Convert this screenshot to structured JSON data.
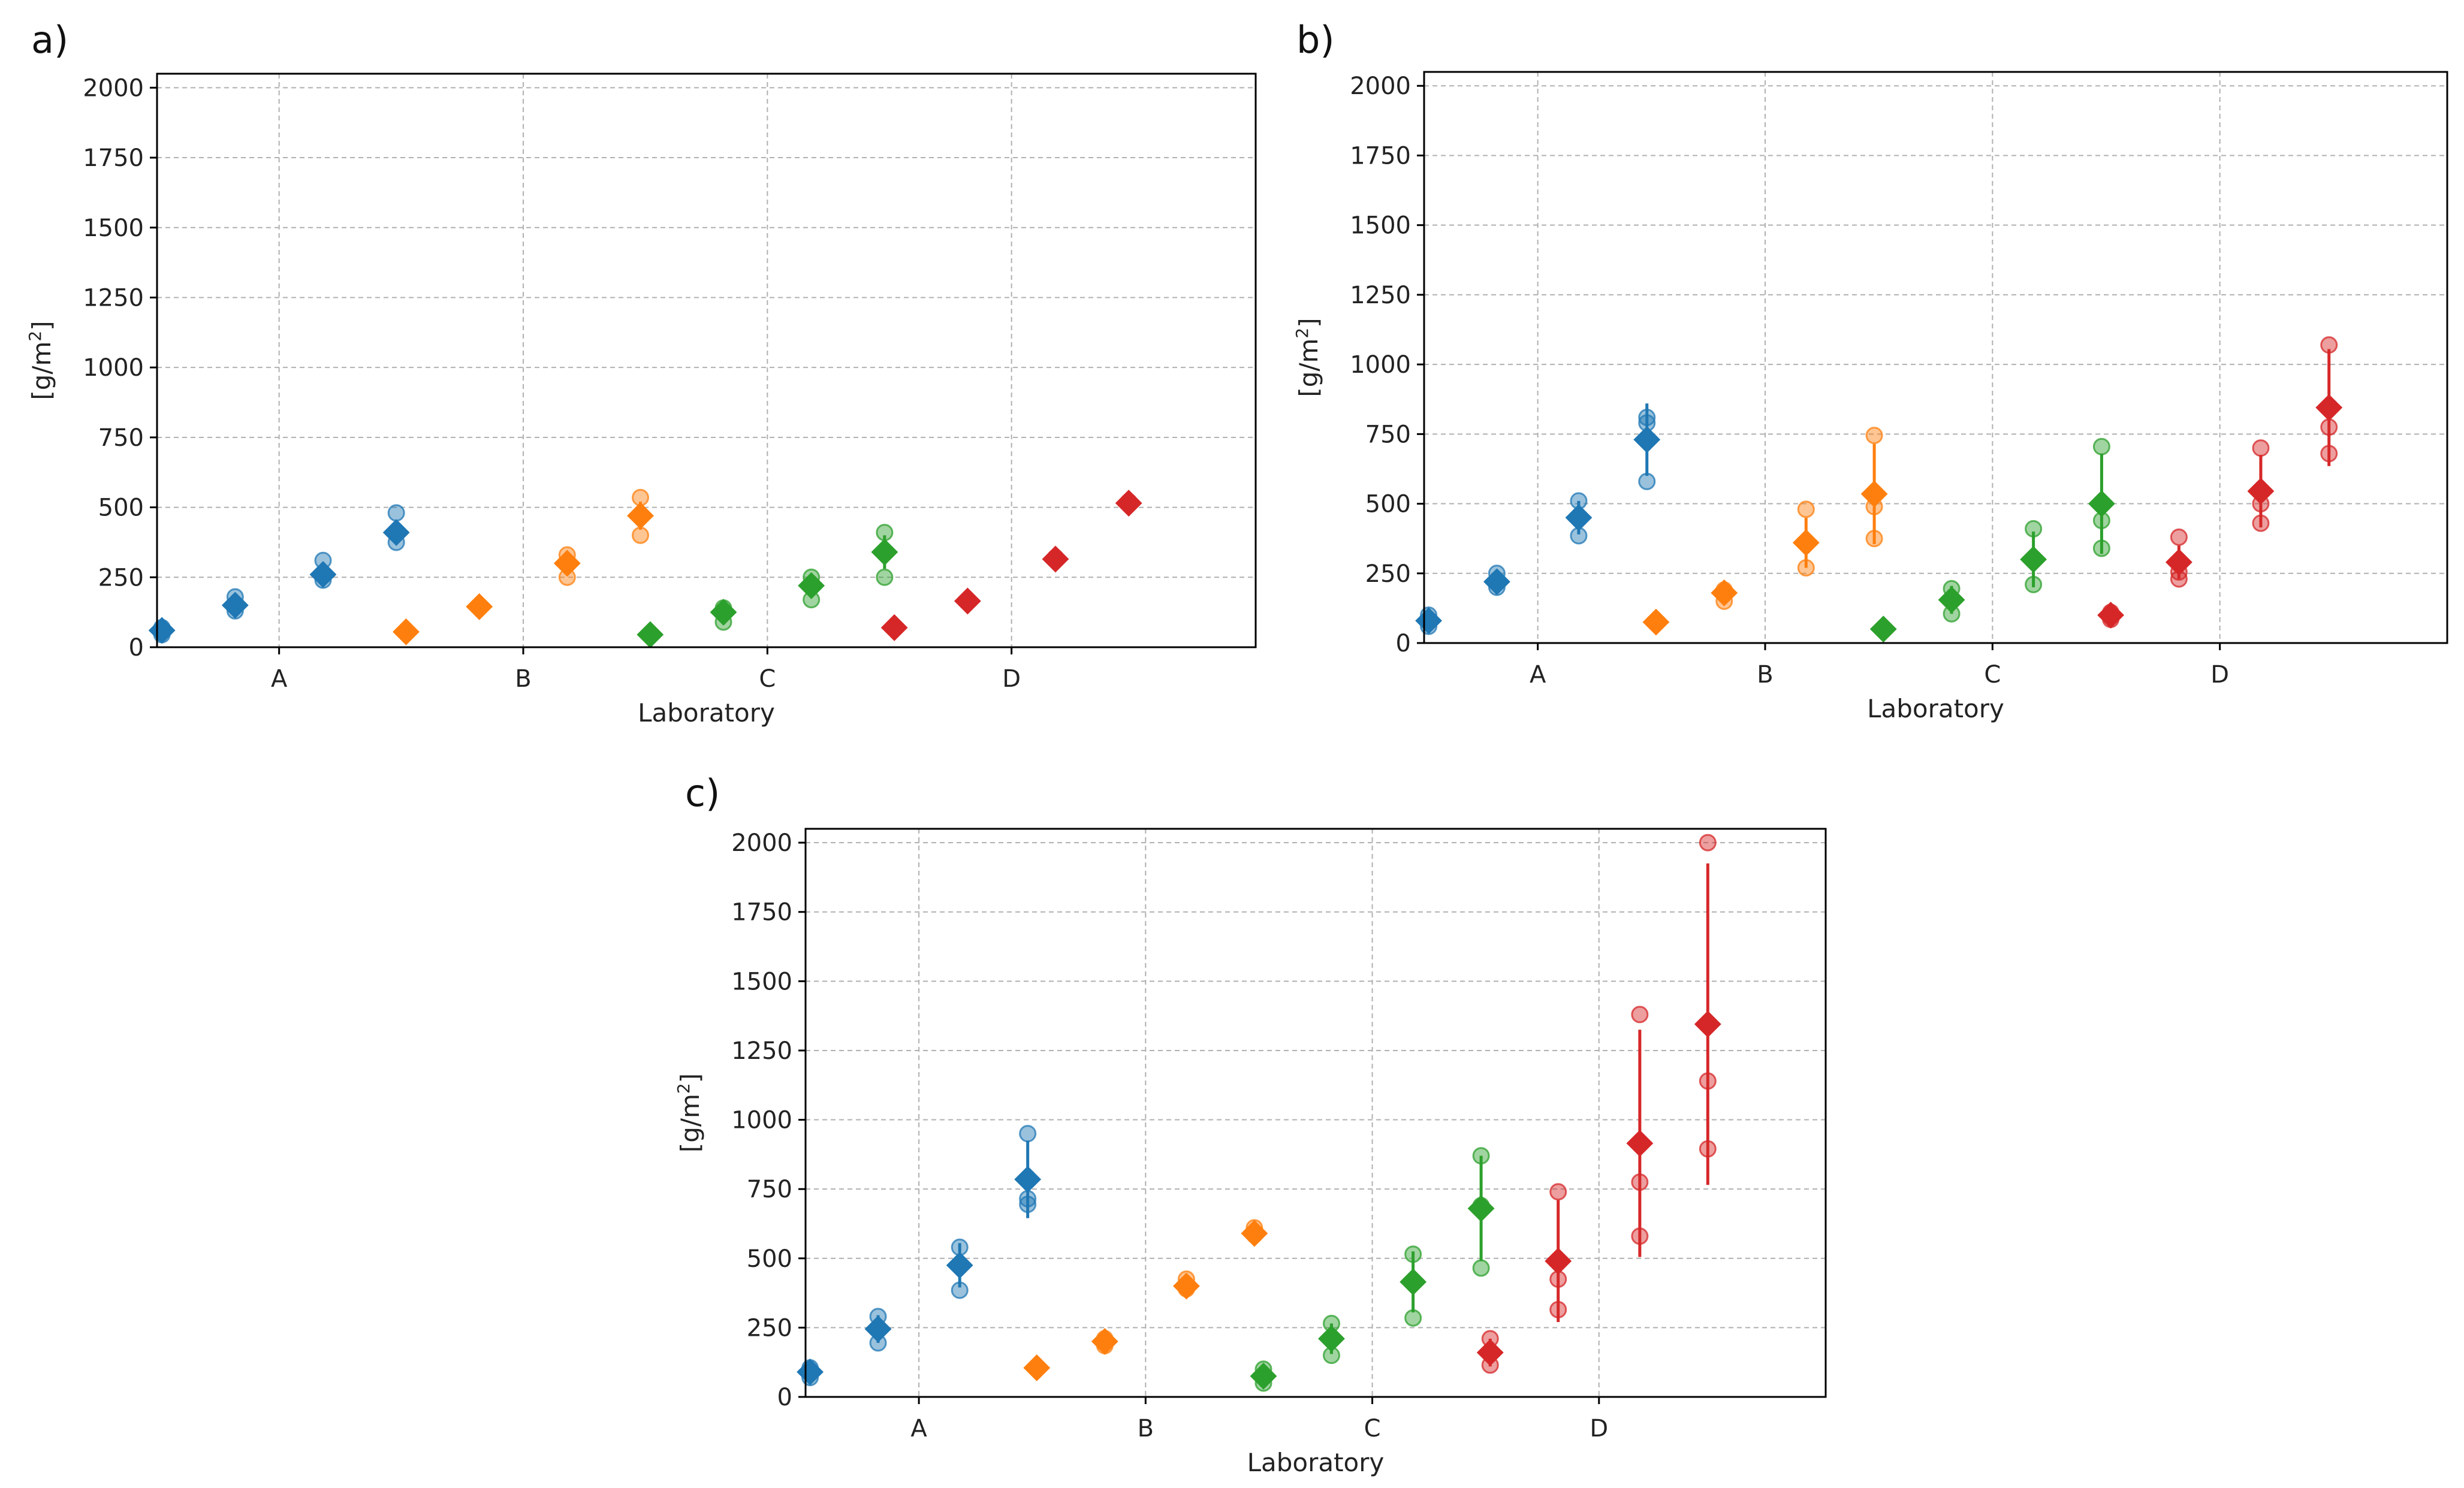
{
  "chart_data": [
    {
      "type": "scatter",
      "panel_label": "a)",
      "title": "",
      "xlabel": "Laboratory",
      "ylabel": "[g/m²]",
      "ylabel_base": "[g/m",
      "ylabel_sup": "2",
      "ylabel_close": "]",
      "categories": [
        "A",
        "B",
        "C",
        "D"
      ],
      "ylim": [
        0,
        2050
      ],
      "yticks": [
        0,
        250,
        500,
        750,
        1000,
        1250,
        1500,
        1750,
        2000
      ],
      "grid": true,
      "series": [
        {
          "name": "A",
          "color": "#1f77b4",
          "groups": [
            {
              "mean": 60,
              "err": 15,
              "points": [
                45,
                70
              ]
            },
            {
              "mean": 150,
              "err": 25,
              "points": [
                130,
                180
              ]
            },
            {
              "mean": 260,
              "err": 30,
              "points": [
                240,
                310
              ]
            },
            {
              "mean": 410,
              "err": 40,
              "points": [
                375,
                480
              ]
            }
          ]
        },
        {
          "name": "B",
          "color": "#ff7f0e",
          "groups": [
            {
              "mean": 55,
              "err": 5,
              "points": [
                55
              ]
            },
            {
              "mean": 145,
              "err": 8,
              "points": [
                145
              ]
            },
            {
              "mean": 300,
              "err": 40,
              "points": [
                250,
                330
              ]
            },
            {
              "mean": 470,
              "err": 50,
              "points": [
                400,
                535
              ]
            }
          ]
        },
        {
          "name": "C",
          "color": "#2ca02c",
          "groups": [
            {
              "mean": 45,
              "err": 5,
              "points": [
                45
              ]
            },
            {
              "mean": 125,
              "err": 30,
              "points": [
                90,
                140
              ]
            },
            {
              "mean": 220,
              "err": 35,
              "points": [
                170,
                250
              ]
            },
            {
              "mean": 340,
              "err": 60,
              "points": [
                250,
                410
              ]
            }
          ]
        },
        {
          "name": "D",
          "color": "#d62728",
          "groups": [
            {
              "mean": 70,
              "err": 5,
              "points": [
                70
              ]
            },
            {
              "mean": 165,
              "err": 10,
              "points": [
                165
              ]
            },
            {
              "mean": 315,
              "err": 15,
              "points": [
                320
              ]
            },
            {
              "mean": 515,
              "err": 15,
              "points": [
                520
              ]
            }
          ]
        }
      ]
    },
    {
      "type": "scatter",
      "panel_label": "b)",
      "title": "",
      "xlabel": "Laboratory",
      "ylabel": "[g/m²]",
      "ylabel_base": "[g/m",
      "ylabel_sup": "2",
      "ylabel_close": "]",
      "categories": [
        "A",
        "B",
        "C",
        "D"
      ],
      "ylim": [
        0,
        2050
      ],
      "yticks": [
        0,
        250,
        500,
        750,
        1000,
        1250,
        1500,
        1750,
        2000
      ],
      "grid": true,
      "series": [
        {
          "name": "A",
          "color": "#1f77b4",
          "groups": [
            {
              "mean": 80,
              "err": 20,
              "points": [
                60,
                100
              ]
            },
            {
              "mean": 220,
              "err": 25,
              "points": [
                200,
                250
              ]
            },
            {
              "mean": 450,
              "err": 60,
              "points": [
                385,
                510
              ]
            },
            {
              "mean": 730,
              "err": 130,
              "points": [
                580,
                790,
                810
              ]
            }
          ]
        },
        {
          "name": "B",
          "color": "#ff7f0e",
          "groups": [
            {
              "mean": 75,
              "err": 5,
              "points": [
                75
              ]
            },
            {
              "mean": 180,
              "err": 25,
              "points": [
                150,
                190
              ]
            },
            {
              "mean": 360,
              "err": 90,
              "points": [
                270,
                480
              ]
            },
            {
              "mean": 535,
              "err": 180,
              "points": [
                375,
                490,
                745
              ]
            }
          ]
        },
        {
          "name": "C",
          "color": "#2ca02c",
          "groups": [
            {
              "mean": 50,
              "err": 5,
              "points": [
                50
              ]
            },
            {
              "mean": 155,
              "err": 50,
              "points": [
                105,
                195
              ]
            },
            {
              "mean": 300,
              "err": 100,
              "points": [
                210,
                410
              ]
            },
            {
              "mean": 500,
              "err": 180,
              "points": [
                340,
                440,
                705
              ]
            }
          ]
        },
        {
          "name": "D",
          "color": "#d62728",
          "groups": [
            {
              "mean": 100,
              "err": 15,
              "points": [
                85,
                110
              ]
            },
            {
              "mean": 290,
              "err": 60,
              "points": [
                230,
                255,
                380
              ]
            },
            {
              "mean": 545,
              "err": 130,
              "points": [
                430,
                500,
                700
              ]
            },
            {
              "mean": 845,
              "err": 210,
              "points": [
                680,
                775,
                1070
              ]
            }
          ]
        }
      ]
    },
    {
      "type": "scatter",
      "panel_label": "c)",
      "title": "",
      "xlabel": "Laboratory",
      "ylabel": "[g/m²]",
      "ylabel_base": "[g/m",
      "ylabel_sup": "2",
      "ylabel_close": "]",
      "categories": [
        "A",
        "B",
        "C",
        "D"
      ],
      "ylim": [
        0,
        2050
      ],
      "yticks": [
        0,
        250,
        500,
        750,
        1000,
        1250,
        1500,
        1750,
        2000
      ],
      "grid": true,
      "series": [
        {
          "name": "A",
          "color": "#1f77b4",
          "groups": [
            {
              "mean": 90,
              "err": 20,
              "points": [
                70,
                105
              ]
            },
            {
              "mean": 245,
              "err": 50,
              "points": [
                195,
                290
              ]
            },
            {
              "mean": 475,
              "err": 80,
              "points": [
                385,
                540
              ]
            },
            {
              "mean": 785,
              "err": 140,
              "points": [
                695,
                715,
                950
              ]
            }
          ]
        },
        {
          "name": "B",
          "color": "#ff7f0e",
          "groups": [
            {
              "mean": 105,
              "err": 5,
              "points": [
                105
              ]
            },
            {
              "mean": 200,
              "err": 20,
              "points": [
                185,
                210
              ]
            },
            {
              "mean": 400,
              "err": 25,
              "points": [
                390,
                425
              ]
            },
            {
              "mean": 590,
              "err": 25,
              "points": [
                585,
                610
              ]
            }
          ]
        },
        {
          "name": "C",
          "color": "#2ca02c",
          "groups": [
            {
              "mean": 75,
              "err": 25,
              "points": [
                50,
                100
              ]
            },
            {
              "mean": 210,
              "err": 55,
              "points": [
                150,
                265
              ]
            },
            {
              "mean": 415,
              "err": 110,
              "points": [
                285,
                515
              ]
            },
            {
              "mean": 680,
              "err": 190,
              "points": [
                465,
                690,
                870
              ]
            }
          ]
        },
        {
          "name": "D",
          "color": "#d62728",
          "groups": [
            {
              "mean": 160,
              "err": 50,
              "points": [
                115,
                210
              ]
            },
            {
              "mean": 490,
              "err": 220,
              "points": [
                315,
                425,
                740
              ]
            },
            {
              "mean": 915,
              "err": 410,
              "points": [
                580,
                775,
                1380
              ]
            },
            {
              "mean": 1345,
              "err": 580,
              "points": [
                895,
                1140,
                2000
              ]
            }
          ]
        }
      ]
    }
  ]
}
